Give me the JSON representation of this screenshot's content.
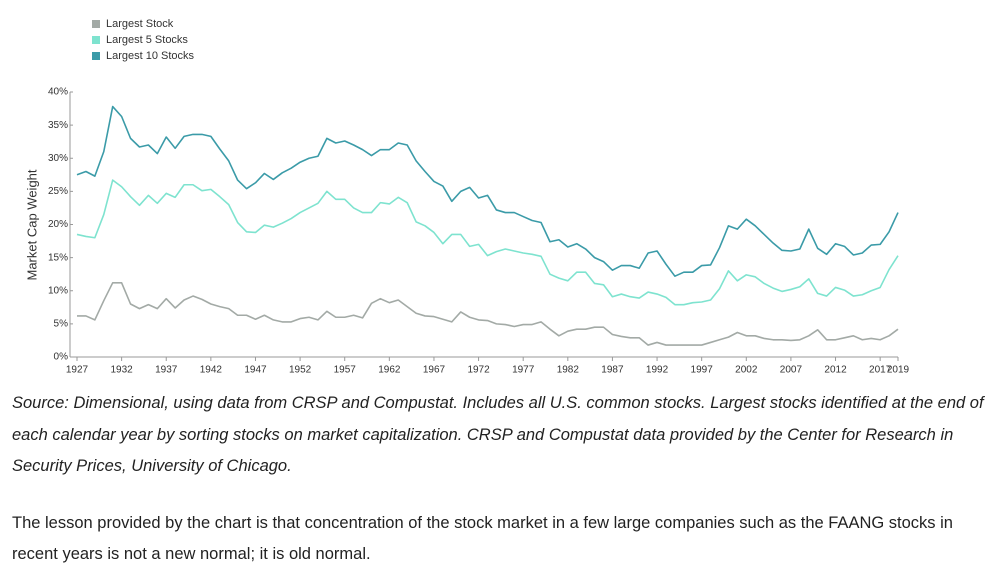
{
  "chart_data": {
    "type": "line",
    "y_label": "Market Cap Weight",
    "legend": "top-left",
    "x": [
      1927,
      1928,
      1929,
      1930,
      1931,
      1932,
      1933,
      1934,
      1935,
      1936,
      1937,
      1938,
      1939,
      1940,
      1941,
      1942,
      1943,
      1944,
      1945,
      1946,
      1947,
      1948,
      1949,
      1950,
      1951,
      1952,
      1953,
      1954,
      1955,
      1956,
      1957,
      1958,
      1959,
      1960,
      1961,
      1962,
      1963,
      1964,
      1965,
      1966,
      1967,
      1968,
      1969,
      1970,
      1971,
      1972,
      1973,
      1974,
      1975,
      1976,
      1977,
      1978,
      1979,
      1980,
      1981,
      1982,
      1983,
      1984,
      1985,
      1986,
      1987,
      1988,
      1989,
      1990,
      1991,
      1992,
      1993,
      1994,
      1995,
      1996,
      1997,
      1998,
      1999,
      2000,
      2001,
      2002,
      2003,
      2004,
      2005,
      2006,
      2007,
      2008,
      2009,
      2010,
      2011,
      2012,
      2013,
      2014,
      2015,
      2016,
      2017,
      2018,
      2019
    ],
    "xlim": [
      1927,
      2019
    ],
    "xticks": [
      1927,
      1932,
      1937,
      1942,
      1947,
      1952,
      1957,
      1962,
      1967,
      1972,
      1977,
      1982,
      1987,
      1992,
      1997,
      2002,
      2007,
      2012,
      2017,
      2019
    ],
    "ylim": [
      0,
      40
    ],
    "yticks": [
      {
        "value": 0,
        "label": "0%"
      },
      {
        "value": 5,
        "label": "5%"
      },
      {
        "value": 10,
        "label": "10%"
      },
      {
        "value": 15,
        "label": "15%"
      },
      {
        "value": 20,
        "label": "20%"
      },
      {
        "value": 25,
        "label": "25%"
      },
      {
        "value": 30,
        "label": "30%"
      },
      {
        "value": 35,
        "label": "35%"
      },
      {
        "value": 40,
        "label": "40%"
      }
    ],
    "series": [
      {
        "name": "Largest Stock",
        "color": "#a3aaa6",
        "values": [
          6.2,
          6.2,
          5.6,
          8.5,
          11.2,
          11.2,
          8,
          7.3,
          7.9,
          7.3,
          8.8,
          7.4,
          8.6,
          9.2,
          8.7,
          8,
          7.6,
          7.3,
          6.3,
          6.3,
          5.7,
          6.3,
          5.6,
          5.3,
          5.3,
          5.8,
          6,
          5.6,
          6.9,
          6,
          6,
          6.3,
          5.9,
          8.1,
          8.8,
          8.2,
          8.6,
          7.6,
          6.6,
          6.2,
          6.1,
          5.7,
          5.3,
          6.8,
          6,
          5.6,
          5.5,
          5,
          4.9,
          4.6,
          4.9,
          4.9,
          5.3,
          4.2,
          3.2,
          3.9,
          4.2,
          4.2,
          4.5,
          4.5,
          3.4,
          3.1,
          2.9,
          2.9,
          1.8,
          2.2,
          1.8,
          1.8,
          1.8,
          1.8,
          1.8,
          2.2,
          2.6,
          3,
          3.7,
          3.2,
          3.2,
          2.8,
          2.6,
          2.6,
          2.5,
          2.6,
          3.2,
          4.1,
          2.6,
          2.6,
          2.9,
          3.2,
          2.6,
          2.8,
          2.6,
          3.2,
          4.2
        ]
      },
      {
        "name": "Largest 5 Stocks",
        "color": "#7ee3cf",
        "values": [
          18.5,
          18.2,
          18,
          21.5,
          26.7,
          25.7,
          24.2,
          22.9,
          24.4,
          23.2,
          24.7,
          24.1,
          26,
          26,
          25.1,
          25.3,
          24.2,
          23,
          20.3,
          18.9,
          18.8,
          19.9,
          19.6,
          20.2,
          20.9,
          21.8,
          22.5,
          23.2,
          25,
          23.8,
          23.8,
          22.5,
          21.8,
          21.8,
          23.3,
          23.1,
          24.1,
          23.3,
          20.4,
          19.8,
          18.8,
          17.1,
          18.5,
          18.5,
          16.7,
          17,
          15.3,
          15.9,
          16.3,
          16,
          15.7,
          15.5,
          15.2,
          12.5,
          11.9,
          11.5,
          12.8,
          12.8,
          11.1,
          10.9,
          9.1,
          9.5,
          9.1,
          8.9,
          9.8,
          9.5,
          9,
          7.9,
          7.9,
          8.2,
          8.3,
          8.6,
          10.3,
          13,
          11.5,
          12.4,
          12.1,
          11.1,
          10.4,
          9.9,
          10.2,
          10.6,
          11.8,
          9.6,
          9.2,
          10.5,
          10.1,
          9.2,
          9.4,
          10,
          10.5,
          13.2,
          15.3
        ]
      },
      {
        "name": "Largest 10 Stocks",
        "color": "#3b9ba8",
        "values": [
          27.5,
          28,
          27.3,
          31,
          37.8,
          36.3,
          33,
          31.7,
          32,
          30.7,
          33.2,
          31.5,
          33.3,
          33.6,
          33.6,
          33.3,
          31.4,
          29.6,
          26.7,
          25.4,
          26.3,
          27.7,
          26.8,
          27.8,
          28.5,
          29.4,
          30,
          30.3,
          33,
          32.3,
          32.6,
          32,
          31.3,
          30.4,
          31.3,
          31.3,
          32.3,
          32,
          29.6,
          28,
          26.5,
          25.8,
          23.5,
          25,
          25.6,
          24,
          24.4,
          22.2,
          21.8,
          21.8,
          21.2,
          20.6,
          20.3,
          17.4,
          17.7,
          16.6,
          17.1,
          16.3,
          15,
          14.4,
          13.1,
          13.8,
          13.8,
          13.4,
          15.7,
          16,
          14,
          12.2,
          12.8,
          12.8,
          13.8,
          13.9,
          16.5,
          19.8,
          19.3,
          20.8,
          19.8,
          18.5,
          17.2,
          16.1,
          16,
          16.3,
          19.3,
          16.4,
          15.5,
          17.1,
          16.7,
          15.4,
          15.7,
          16.9,
          17,
          18.9,
          21.8
        ]
      }
    ]
  },
  "source": "Source: Dimensional, using data from CRSP and Compustat. Includes all U.S. common stocks. Largest stocks identified at the end of each calendar year by sorting stocks on market capitalization. CRSP and Compustat data provided by the Center for Research in Security Prices, University of Chicago.",
  "paragraph": "The lesson provided by the chart is that concentration of the stock market in a few large companies such as the FAANG stocks in recent years is not a new normal; it is old normal."
}
